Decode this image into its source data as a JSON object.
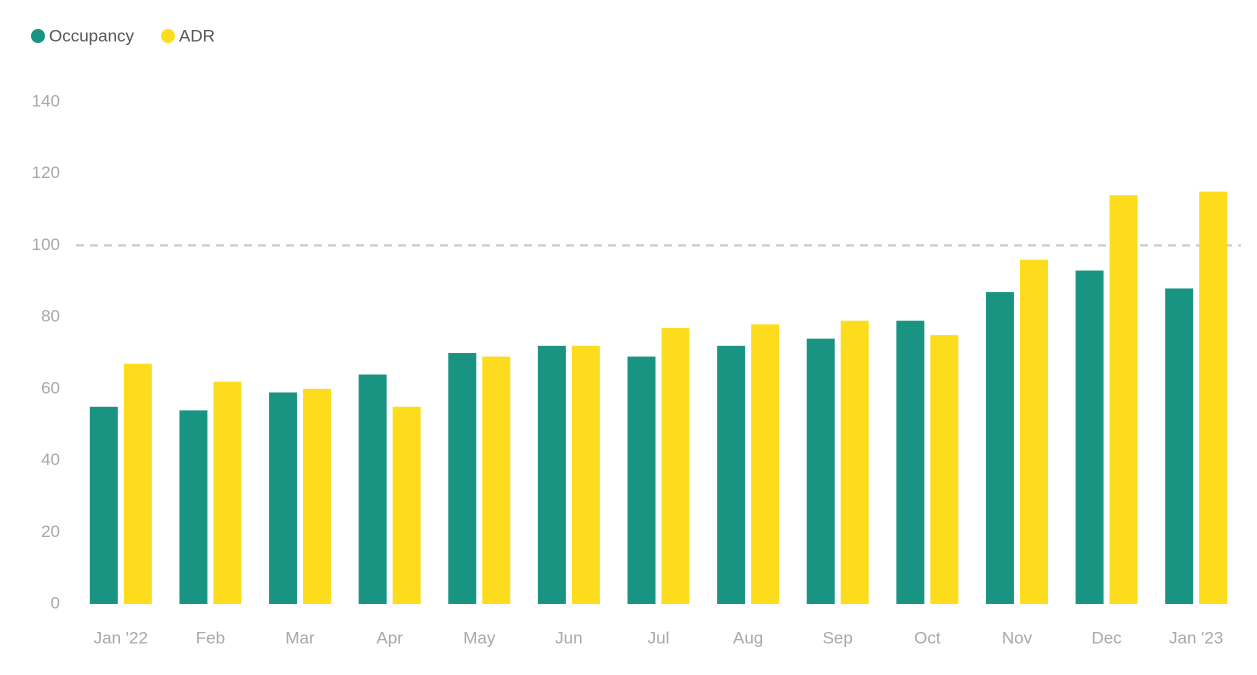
{
  "chart_data": {
    "type": "bar",
    "categories": [
      "Jan '22",
      "Feb",
      "Mar",
      "Apr",
      "May",
      "Jun",
      "Jul",
      "Aug",
      "Sep",
      "Oct",
      "Nov",
      "Dec",
      "Jan '23"
    ],
    "series": [
      {
        "name": "Occupancy",
        "color": "#1a9482",
        "values": [
          55,
          54,
          59,
          64,
          70,
          72,
          69,
          72,
          74,
          79,
          87,
          93,
          88
        ]
      },
      {
        "name": "ADR",
        "color": "#fcdc1c",
        "values": [
          67,
          62,
          60,
          55,
          69,
          72,
          77,
          78,
          79,
          75,
          96,
          114,
          115
        ]
      }
    ],
    "ylim": [
      0,
      140
    ],
    "yticks": [
      0,
      20,
      40,
      60,
      80,
      100,
      120,
      140
    ],
    "reference_line": 100,
    "grid": false,
    "legend": "top-left"
  }
}
